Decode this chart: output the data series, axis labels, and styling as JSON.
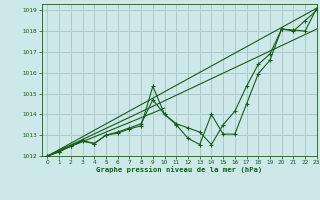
{
  "title": "Graphe pression niveau de la mer (hPa)",
  "bg_color": "#cce8e8",
  "grid_color": "#aacaca",
  "line_color": "#1a5c1a",
  "xlim": [
    -0.5,
    23
  ],
  "ylim": [
    1012,
    1019.3
  ],
  "xticks": [
    0,
    1,
    2,
    3,
    4,
    5,
    6,
    7,
    8,
    9,
    10,
    11,
    12,
    13,
    14,
    15,
    16,
    17,
    18,
    19,
    20,
    21,
    22,
    23
  ],
  "yticks": [
    1012,
    1013,
    1014,
    1015,
    1016,
    1017,
    1018,
    1019
  ],
  "straight_lines": [
    {
      "x": [
        0,
        23
      ],
      "y": [
        1012.0,
        1019.1
      ]
    },
    {
      "x": [
        0,
        23
      ],
      "y": [
        1012.0,
        1018.1
      ]
    },
    {
      "x": [
        0,
        10
      ],
      "y": [
        1012.0,
        1014.3
      ]
    }
  ],
  "series": [
    {
      "x": [
        0,
        1,
        2,
        3,
        4,
        5,
        6,
        7,
        8,
        9,
        10,
        11,
        12,
        13,
        14,
        15,
        16,
        17,
        18,
        19,
        20,
        21,
        22,
        23
      ],
      "y": [
        1012.0,
        1012.2,
        1012.5,
        1012.7,
        1012.6,
        1013.0,
        1013.1,
        1013.3,
        1013.45,
        1015.35,
        1014.0,
        1013.5,
        1012.85,
        1012.55,
        1014.0,
        1013.05,
        1013.05,
        1014.5,
        1015.95,
        1016.6,
        1018.1,
        1018.05,
        1018.0,
        1019.1
      ]
    },
    {
      "x": [
        0,
        1,
        2,
        3,
        4,
        5,
        6,
        7,
        8,
        9,
        10,
        11,
        12,
        13,
        14,
        15,
        16,
        17,
        18,
        19,
        20,
        21,
        22,
        23
      ],
      "y": [
        1012.0,
        1012.2,
        1012.5,
        1012.75,
        1012.6,
        1013.0,
        1013.15,
        1013.35,
        1013.55,
        1014.7,
        1014.0,
        1013.55,
        1013.35,
        1013.15,
        1012.55,
        1013.5,
        1014.15,
        1015.35,
        1016.4,
        1016.9,
        1018.1,
        1018.0,
        1018.5,
        1019.0
      ]
    }
  ]
}
